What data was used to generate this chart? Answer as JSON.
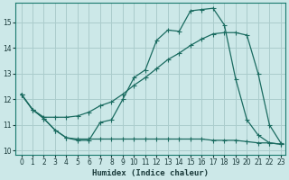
{
  "xlabel": "Humidex (Indice chaleur)",
  "bg_color": "#cce8e8",
  "grid_color": "#aacccc",
  "line_color": "#1a6b60",
  "xlim": [
    -0.5,
    23.4
  ],
  "ylim": [
    9.85,
    15.75
  ],
  "xticks": [
    0,
    1,
    2,
    3,
    4,
    5,
    6,
    7,
    8,
    9,
    10,
    11,
    12,
    13,
    14,
    15,
    16,
    17,
    18,
    19,
    20,
    21,
    22,
    23
  ],
  "yticks": [
    10,
    11,
    12,
    13,
    14,
    15
  ],
  "line1_x": [
    0,
    1,
    2,
    3,
    4,
    5,
    6,
    7,
    8,
    9,
    10,
    11,
    12,
    13,
    14,
    15,
    16,
    17,
    18,
    19,
    20,
    21,
    22,
    23
  ],
  "line1_y": [
    12.2,
    11.6,
    11.25,
    10.8,
    10.5,
    10.4,
    10.4,
    11.1,
    11.2,
    12.0,
    12.85,
    13.15,
    14.3,
    14.7,
    14.65,
    15.45,
    15.5,
    15.55,
    14.9,
    12.8,
    11.2,
    10.6,
    10.3,
    10.25
  ],
  "line2_x": [
    0,
    1,
    2,
    3,
    4,
    5,
    6,
    7,
    8,
    9,
    10,
    11,
    12,
    13,
    14,
    15,
    16,
    17,
    18,
    19,
    20,
    21,
    22,
    23
  ],
  "line2_y": [
    12.2,
    11.6,
    11.3,
    11.3,
    11.3,
    11.35,
    11.5,
    11.75,
    11.9,
    12.2,
    12.55,
    12.85,
    13.2,
    13.55,
    13.8,
    14.1,
    14.35,
    14.55,
    14.6,
    14.6,
    14.5,
    13.0,
    11.0,
    10.3
  ],
  "line3_x": [
    0,
    1,
    2,
    3,
    4,
    5,
    6,
    7,
    8,
    9,
    10,
    11,
    12,
    13,
    14,
    15,
    16,
    17,
    18,
    19,
    20,
    21,
    22,
    23
  ],
  "line3_y": [
    12.2,
    11.6,
    11.25,
    10.8,
    10.5,
    10.45,
    10.45,
    10.45,
    10.45,
    10.45,
    10.45,
    10.45,
    10.45,
    10.45,
    10.45,
    10.45,
    10.45,
    10.4,
    10.4,
    10.4,
    10.35,
    10.3,
    10.3,
    10.25
  ]
}
